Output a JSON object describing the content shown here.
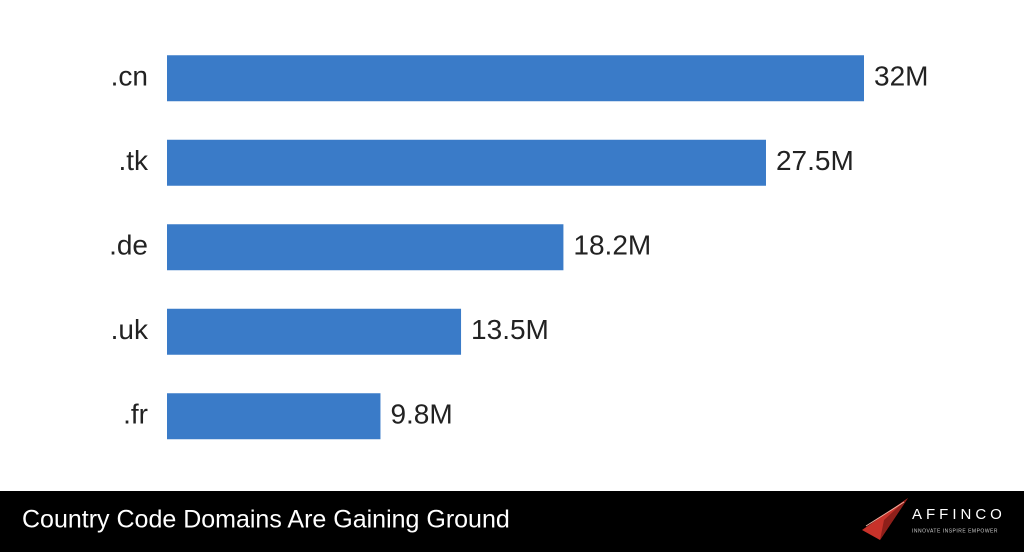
{
  "chart_data": {
    "type": "bar",
    "orientation": "horizontal",
    "title": "Country Code Domains Are Gaining Ground",
    "categories": [
      ".cn",
      ".tk",
      ".de",
      ".uk",
      ".fr"
    ],
    "values": [
      32,
      27.5,
      18.2,
      13.5,
      9.8
    ],
    "value_labels": [
      "32M",
      "27.5M",
      "18.2M",
      "13.5M",
      "9.8M"
    ],
    "color": "#3a7bc8"
  },
  "logo": {
    "name": "AFFINCO",
    "tagline": "INNOVATE INSPIRE EMPOWER"
  }
}
